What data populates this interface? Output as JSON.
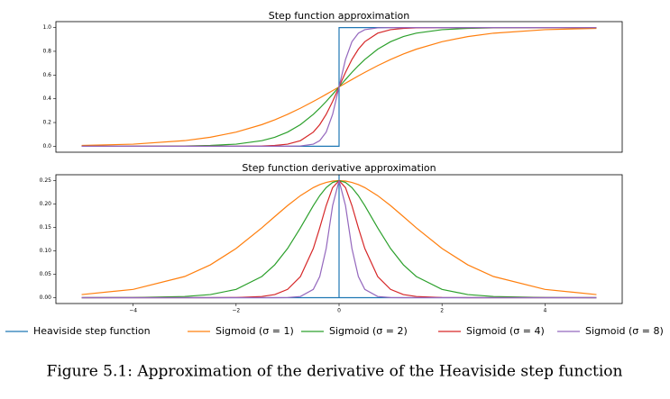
{
  "chart_data": [
    {
      "type": "line",
      "title": "Step function approximation",
      "xlim": [
        -5.5,
        5.5
      ],
      "ylim": [
        -0.05,
        1.05
      ],
      "yticks": [
        {
          "value": 0,
          "label": "0.0"
        },
        {
          "value": 0.2,
          "label": "0.2"
        },
        {
          "value": 0.4,
          "label": "0.4"
        },
        {
          "value": 0.6,
          "label": "0.6"
        },
        {
          "value": 0.8,
          "label": "0.8"
        },
        {
          "value": 1,
          "label": "1.0"
        }
      ],
      "series": [
        {
          "name": "Heaviside step function",
          "color": "#1f77b4",
          "x": [
            -5,
            0,
            0,
            5
          ],
          "values": [
            0,
            0,
            1,
            1
          ]
        },
        {
          "name": "Sigmoid (σ = 1)",
          "color": "#ff7f0e",
          "x": [
            -5,
            -4,
            -3,
            -2.5,
            -2,
            -1.5,
            -1.25,
            -1,
            -0.75,
            -0.5,
            -0.375,
            -0.25,
            -0.125,
            0,
            0.125,
            0.25,
            0.375,
            0.5,
            0.75,
            1,
            1.25,
            1.5,
            2,
            2.5,
            3,
            4,
            5
          ],
          "values": [
            0.0067,
            0.018,
            0.0474,
            0.0759,
            0.1192,
            0.1824,
            0.2227,
            0.2689,
            0.3208,
            0.3775,
            0.4073,
            0.4378,
            0.4688,
            0.5,
            0.5312,
            0.5622,
            0.5927,
            0.6225,
            0.6792,
            0.7311,
            0.7773,
            0.8176,
            0.8808,
            0.9241,
            0.9526,
            0.982,
            0.9933
          ]
        },
        {
          "name": "Sigmoid (σ = 2)",
          "color": "#2ca02c",
          "x": [
            -5,
            -4,
            -3,
            -2.5,
            -2,
            -1.5,
            -1.25,
            -1,
            -0.75,
            -0.5,
            -0.375,
            -0.25,
            -0.125,
            0,
            0.125,
            0.25,
            0.375,
            0.5,
            0.75,
            1,
            1.25,
            1.5,
            2,
            2.5,
            3,
            4,
            5
          ],
          "values": [
            0,
            0.0003,
            0.0025,
            0.0067,
            0.018,
            0.0474,
            0.0759,
            0.1192,
            0.1824,
            0.2689,
            0.3208,
            0.3775,
            0.4378,
            0.5,
            0.5622,
            0.6225,
            0.6792,
            0.7311,
            0.8176,
            0.8808,
            0.9241,
            0.9526,
            0.982,
            0.9933,
            0.9975,
            0.9997,
            1
          ]
        },
        {
          "name": "Sigmoid (σ = 4)",
          "color": "#d62728",
          "x": [
            -5,
            -4,
            -3,
            -2.5,
            -2,
            -1.5,
            -1.25,
            -1,
            -0.75,
            -0.5,
            -0.375,
            -0.25,
            -0.125,
            0,
            0.125,
            0.25,
            0.375,
            0.5,
            0.75,
            1,
            1.25,
            1.5,
            2,
            2.5,
            3,
            4,
            5
          ],
          "values": [
            0,
            0,
            0,
            0,
            0.0003,
            0.0025,
            0.0067,
            0.018,
            0.0474,
            0.1192,
            0.1824,
            0.2689,
            0.3775,
            0.5,
            0.6225,
            0.7311,
            0.8176,
            0.8808,
            0.9526,
            0.982,
            0.9933,
            0.9975,
            0.9997,
            1,
            1,
            1,
            1
          ]
        },
        {
          "name": "Sigmoid (σ = 8)",
          "color": "#9467bd",
          "x": [
            -5,
            -4,
            -3,
            -2.5,
            -2,
            -1.5,
            -1.25,
            -1,
            -0.75,
            -0.5,
            -0.375,
            -0.25,
            -0.125,
            0,
            0.125,
            0.25,
            0.375,
            0.5,
            0.75,
            1,
            1.25,
            1.5,
            2,
            2.5,
            3,
            4,
            5
          ],
          "values": [
            0,
            0,
            0,
            0,
            0,
            0,
            0,
            0.0003,
            0.0025,
            0.018,
            0.0474,
            0.1192,
            0.2689,
            0.5,
            0.7311,
            0.8808,
            0.9526,
            0.982,
            0.9975,
            0.9997,
            1,
            1,
            1,
            1,
            1,
            1,
            1
          ]
        }
      ]
    },
    {
      "type": "line",
      "title": "Step function derivative approximation",
      "xlim": [
        -5.5,
        5.5
      ],
      "ylim": [
        -0.0125,
        0.2625
      ],
      "xticks": [
        {
          "value": -4,
          "label": "−4"
        },
        {
          "value": -2,
          "label": "−2"
        },
        0,
        2,
        4
      ],
      "yticks": [
        {
          "value": 0,
          "label": "0.00"
        },
        {
          "value": 0.05,
          "label": "0.05"
        },
        {
          "value": 0.1,
          "label": "0.10"
        },
        {
          "value": 0.15,
          "label": "0.15"
        },
        {
          "value": 0.2,
          "label": "0.20"
        },
        {
          "value": 0.25,
          "label": "0.25"
        }
      ],
      "series": [
        {
          "name": "Heaviside step function",
          "color": "#1f77b4",
          "x": [
            -5,
            0,
            0,
            0,
            5
          ],
          "values": [
            0,
            0,
            0.2625,
            0,
            0
          ]
        },
        {
          "name": "Sigmoid (σ = 1)",
          "color": "#ff7f0e",
          "x": [
            -5,
            -4,
            -3,
            -2.5,
            -2,
            -1.5,
            -1.25,
            -1,
            -0.75,
            -0.5,
            -0.375,
            -0.25,
            -0.125,
            0,
            0.125,
            0.25,
            0.375,
            0.5,
            0.75,
            1,
            1.25,
            1.5,
            2,
            2.5,
            3,
            4,
            5
          ],
          "values": [
            0.0066,
            0.0177,
            0.0452,
            0.0701,
            0.105,
            0.1491,
            0.1731,
            0.1966,
            0.2179,
            0.235,
            0.2414,
            0.2461,
            0.249,
            0.25,
            0.249,
            0.2461,
            0.2414,
            0.235,
            0.2179,
            0.1966,
            0.1731,
            0.1491,
            0.105,
            0.0701,
            0.0452,
            0.0177,
            0.0066
          ]
        },
        {
          "name": "Sigmoid (σ = 2)",
          "color": "#2ca02c",
          "x": [
            -5,
            -4,
            -3,
            -2.5,
            -2,
            -1.5,
            -1.25,
            -1,
            -0.75,
            -0.5,
            -0.375,
            -0.25,
            -0.125,
            0,
            0.125,
            0.25,
            0.375,
            0.5,
            0.75,
            1,
            1.25,
            1.5,
            2,
            2.5,
            3,
            4,
            5
          ],
          "values": [
            0,
            0.0003,
            0.0025,
            0.0066,
            0.0177,
            0.0452,
            0.0701,
            0.105,
            0.1491,
            0.1966,
            0.2179,
            0.235,
            0.2461,
            0.25,
            0.2461,
            0.235,
            0.2179,
            0.1966,
            0.1491,
            0.105,
            0.0701,
            0.0452,
            0.0177,
            0.0066,
            0.0025,
            0.0003,
            0
          ]
        },
        {
          "name": "Sigmoid (σ = 4)",
          "color": "#d62728",
          "x": [
            -5,
            -4,
            -3,
            -2.5,
            -2,
            -1.5,
            -1.25,
            -1,
            -0.75,
            -0.5,
            -0.375,
            -0.25,
            -0.125,
            0,
            0.125,
            0.25,
            0.375,
            0.5,
            0.75,
            1,
            1.25,
            1.5,
            2,
            2.5,
            3,
            4,
            5
          ],
          "values": [
            0,
            0,
            0,
            0,
            0.0003,
            0.0025,
            0.0066,
            0.0177,
            0.0452,
            0.105,
            0.1491,
            0.1966,
            0.235,
            0.25,
            0.235,
            0.1966,
            0.1491,
            0.105,
            0.0452,
            0.0177,
            0.0066,
            0.0025,
            0.0003,
            0,
            0,
            0,
            0
          ]
        },
        {
          "name": "Sigmoid (σ = 8)",
          "color": "#9467bd",
          "x": [
            -5,
            -4,
            -3,
            -2.5,
            -2,
            -1.5,
            -1.25,
            -1,
            -0.75,
            -0.5,
            -0.375,
            -0.25,
            -0.125,
            0,
            0.125,
            0.25,
            0.375,
            0.5,
            0.75,
            1,
            1.25,
            1.5,
            2,
            2.5,
            3,
            4,
            5
          ],
          "values": [
            0,
            0,
            0,
            0,
            0,
            0,
            0,
            0.0003,
            0.0025,
            0.0177,
            0.0452,
            0.105,
            0.1966,
            0.25,
            0.1966,
            0.105,
            0.0452,
            0.0177,
            0.0025,
            0.0003,
            0,
            0,
            0,
            0,
            0,
            0,
            0
          ]
        }
      ]
    }
  ],
  "caption": "Figure 5.1: Approximation of the derivative of the Heaviside step function"
}
